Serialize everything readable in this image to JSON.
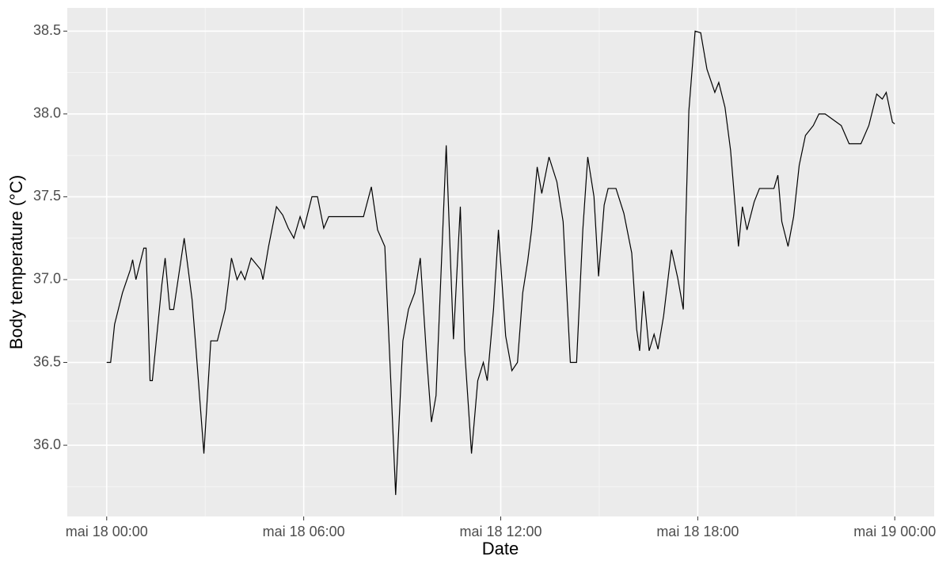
{
  "chart_data": {
    "type": "line",
    "xlabel": "Date",
    "ylabel": "Body temperature (°C)",
    "xlim": [
      -1.2,
      25.2
    ],
    "ylim": [
      35.57,
      38.64
    ],
    "xticks": [
      {
        "value": 0,
        "label": "mai 18 00:00"
      },
      {
        "value": 6,
        "label": "mai 18 06:00"
      },
      {
        "value": 12,
        "label": "mai 18 12:00"
      },
      {
        "value": 18,
        "label": "mai 18 18:00"
      },
      {
        "value": 24,
        "label": "mai 19 00:00"
      }
    ],
    "yticks": [
      {
        "value": 36,
        "label": "36.0"
      },
      36.5,
      {
        "value": 37,
        "label": "37.0"
      },
      37.5,
      {
        "value": 38,
        "label": "38.0"
      },
      38.5
    ],
    "grid": true,
    "series": [
      {
        "color": "#000000",
        "x": [
          0,
          0.12,
          0.24,
          0.48,
          0.72,
          0.79,
          0.89,
          1.13,
          1.2,
          1.32,
          1.39,
          1.68,
          1.78,
          1.92,
          2.04,
          2.36,
          2.6,
          2.72,
          2.96,
          3.17,
          3.37,
          3.61,
          3.8,
          3.97,
          4.09,
          4.21,
          4.4,
          4.69,
          4.76,
          4.93,
          5.17,
          5.36,
          5.53,
          5.7,
          5.89,
          6.01,
          6.25,
          6.42,
          6.61,
          6.76,
          7.82,
          8.06,
          8.25,
          8.47,
          8.66,
          8.8,
          9.02,
          9.19,
          9.38,
          9.55,
          9.74,
          9.89,
          10.03,
          10.34,
          10.56,
          10.77,
          10.9,
          11.11,
          11.3,
          11.47,
          11.59,
          11.78,
          11.93,
          12.15,
          12.34,
          12.51,
          12.67,
          12.82,
          12.94,
          13.11,
          13.25,
          13.47,
          13.71,
          13.9,
          14.12,
          14.31,
          14.5,
          14.65,
          14.84,
          14.98,
          15.15,
          15.27,
          15.51,
          15.75,
          15.99,
          16.14,
          16.23,
          16.35,
          16.52,
          16.67,
          16.79,
          16.96,
          17.2,
          17.39,
          17.56,
          17.73,
          17.92,
          18.09,
          18.28,
          18.52,
          18.64,
          18.83,
          19.0,
          19.24,
          19.36,
          19.5,
          19.72,
          19.88,
          20.32,
          20.44,
          20.56,
          20.75,
          20.92,
          21.09,
          21.28,
          21.52,
          21.69,
          21.88,
          22.37,
          22.61,
          22.97,
          23.21,
          23.45,
          23.62,
          23.74,
          23.93,
          24.0
        ],
        "values": [
          36.5,
          36.5,
          36.73,
          36.92,
          37.06,
          37.12,
          37.0,
          37.19,
          37.19,
          36.39,
          36.39,
          36.97,
          37.13,
          36.82,
          36.82,
          37.25,
          36.88,
          36.58,
          35.95,
          36.63,
          36.63,
          36.82,
          37.13,
          37.0,
          37.05,
          37.0,
          37.13,
          37.06,
          37.0,
          37.2,
          37.44,
          37.39,
          37.31,
          37.25,
          37.38,
          37.31,
          37.5,
          37.5,
          37.31,
          37.38,
          37.38,
          37.56,
          37.3,
          37.2,
          36.35,
          35.7,
          36.63,
          36.82,
          36.92,
          37.13,
          36.54,
          36.14,
          36.3,
          37.81,
          36.64,
          37.44,
          36.58,
          35.95,
          36.39,
          36.5,
          36.39,
          36.82,
          37.3,
          36.66,
          36.45,
          36.5,
          36.92,
          37.11,
          37.3,
          37.68,
          37.52,
          37.74,
          37.59,
          37.35,
          36.5,
          36.5,
          37.3,
          37.74,
          37.5,
          37.02,
          37.45,
          37.55,
          37.55,
          37.4,
          37.16,
          36.7,
          36.57,
          36.93,
          36.57,
          36.67,
          36.58,
          36.78,
          37.18,
          37.01,
          36.82,
          38.02,
          38.5,
          38.49,
          38.27,
          38.13,
          38.19,
          38.04,
          37.78,
          37.2,
          37.44,
          37.3,
          37.47,
          37.55,
          37.55,
          37.63,
          37.35,
          37.2,
          37.38,
          37.69,
          37.87,
          37.93,
          38.0,
          38.0,
          37.93,
          37.82,
          37.82,
          37.93,
          38.12,
          38.09,
          38.13,
          37.95,
          37.94
        ]
      }
    ]
  }
}
